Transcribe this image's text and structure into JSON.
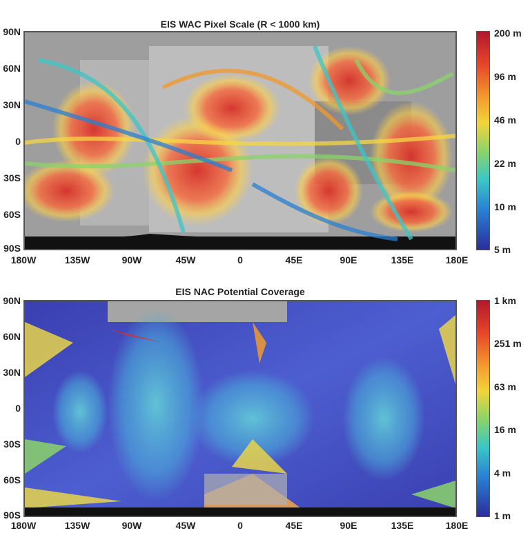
{
  "panels": [
    {
      "title": "EIS WAC Pixel Scale (R < 1000 km)",
      "lat_labels": [
        "90N",
        "60N",
        "30N",
        "0",
        "30S",
        "60S",
        "90S"
      ],
      "lon_labels": [
        "180W",
        "135W",
        "90W",
        "45W",
        "0",
        "45E",
        "90E",
        "135E",
        "180E"
      ],
      "colorbar_labels": [
        "200 m",
        "96 m",
        "46 m",
        "22 m",
        "10 m",
        "5 m"
      ],
      "colormap": [
        "#b2182b",
        "#e8452a",
        "#f29a2e",
        "#f2d43a",
        "#8ad36a",
        "#3cc6c6",
        "#2a7fd1",
        "#2a2e9a"
      ]
    },
    {
      "title": "EIS NAC Potential Coverage",
      "lat_labels": [
        "90N",
        "60N",
        "30N",
        "0",
        "30S",
        "60S",
        "90S"
      ],
      "lon_labels": [
        "180W",
        "135W",
        "90W",
        "45W",
        "0",
        "45E",
        "90E",
        "135E",
        "180E"
      ],
      "colorbar_labels": [
        "1 km",
        "251 m",
        "63 m",
        "16 m",
        "4 m",
        "1 m"
      ],
      "colormap": [
        "#b2182b",
        "#e8452a",
        "#f29a2e",
        "#f2d43a",
        "#8ad36a",
        "#3cc6c6",
        "#2a7fd1",
        "#2a2e9a"
      ]
    }
  ]
}
